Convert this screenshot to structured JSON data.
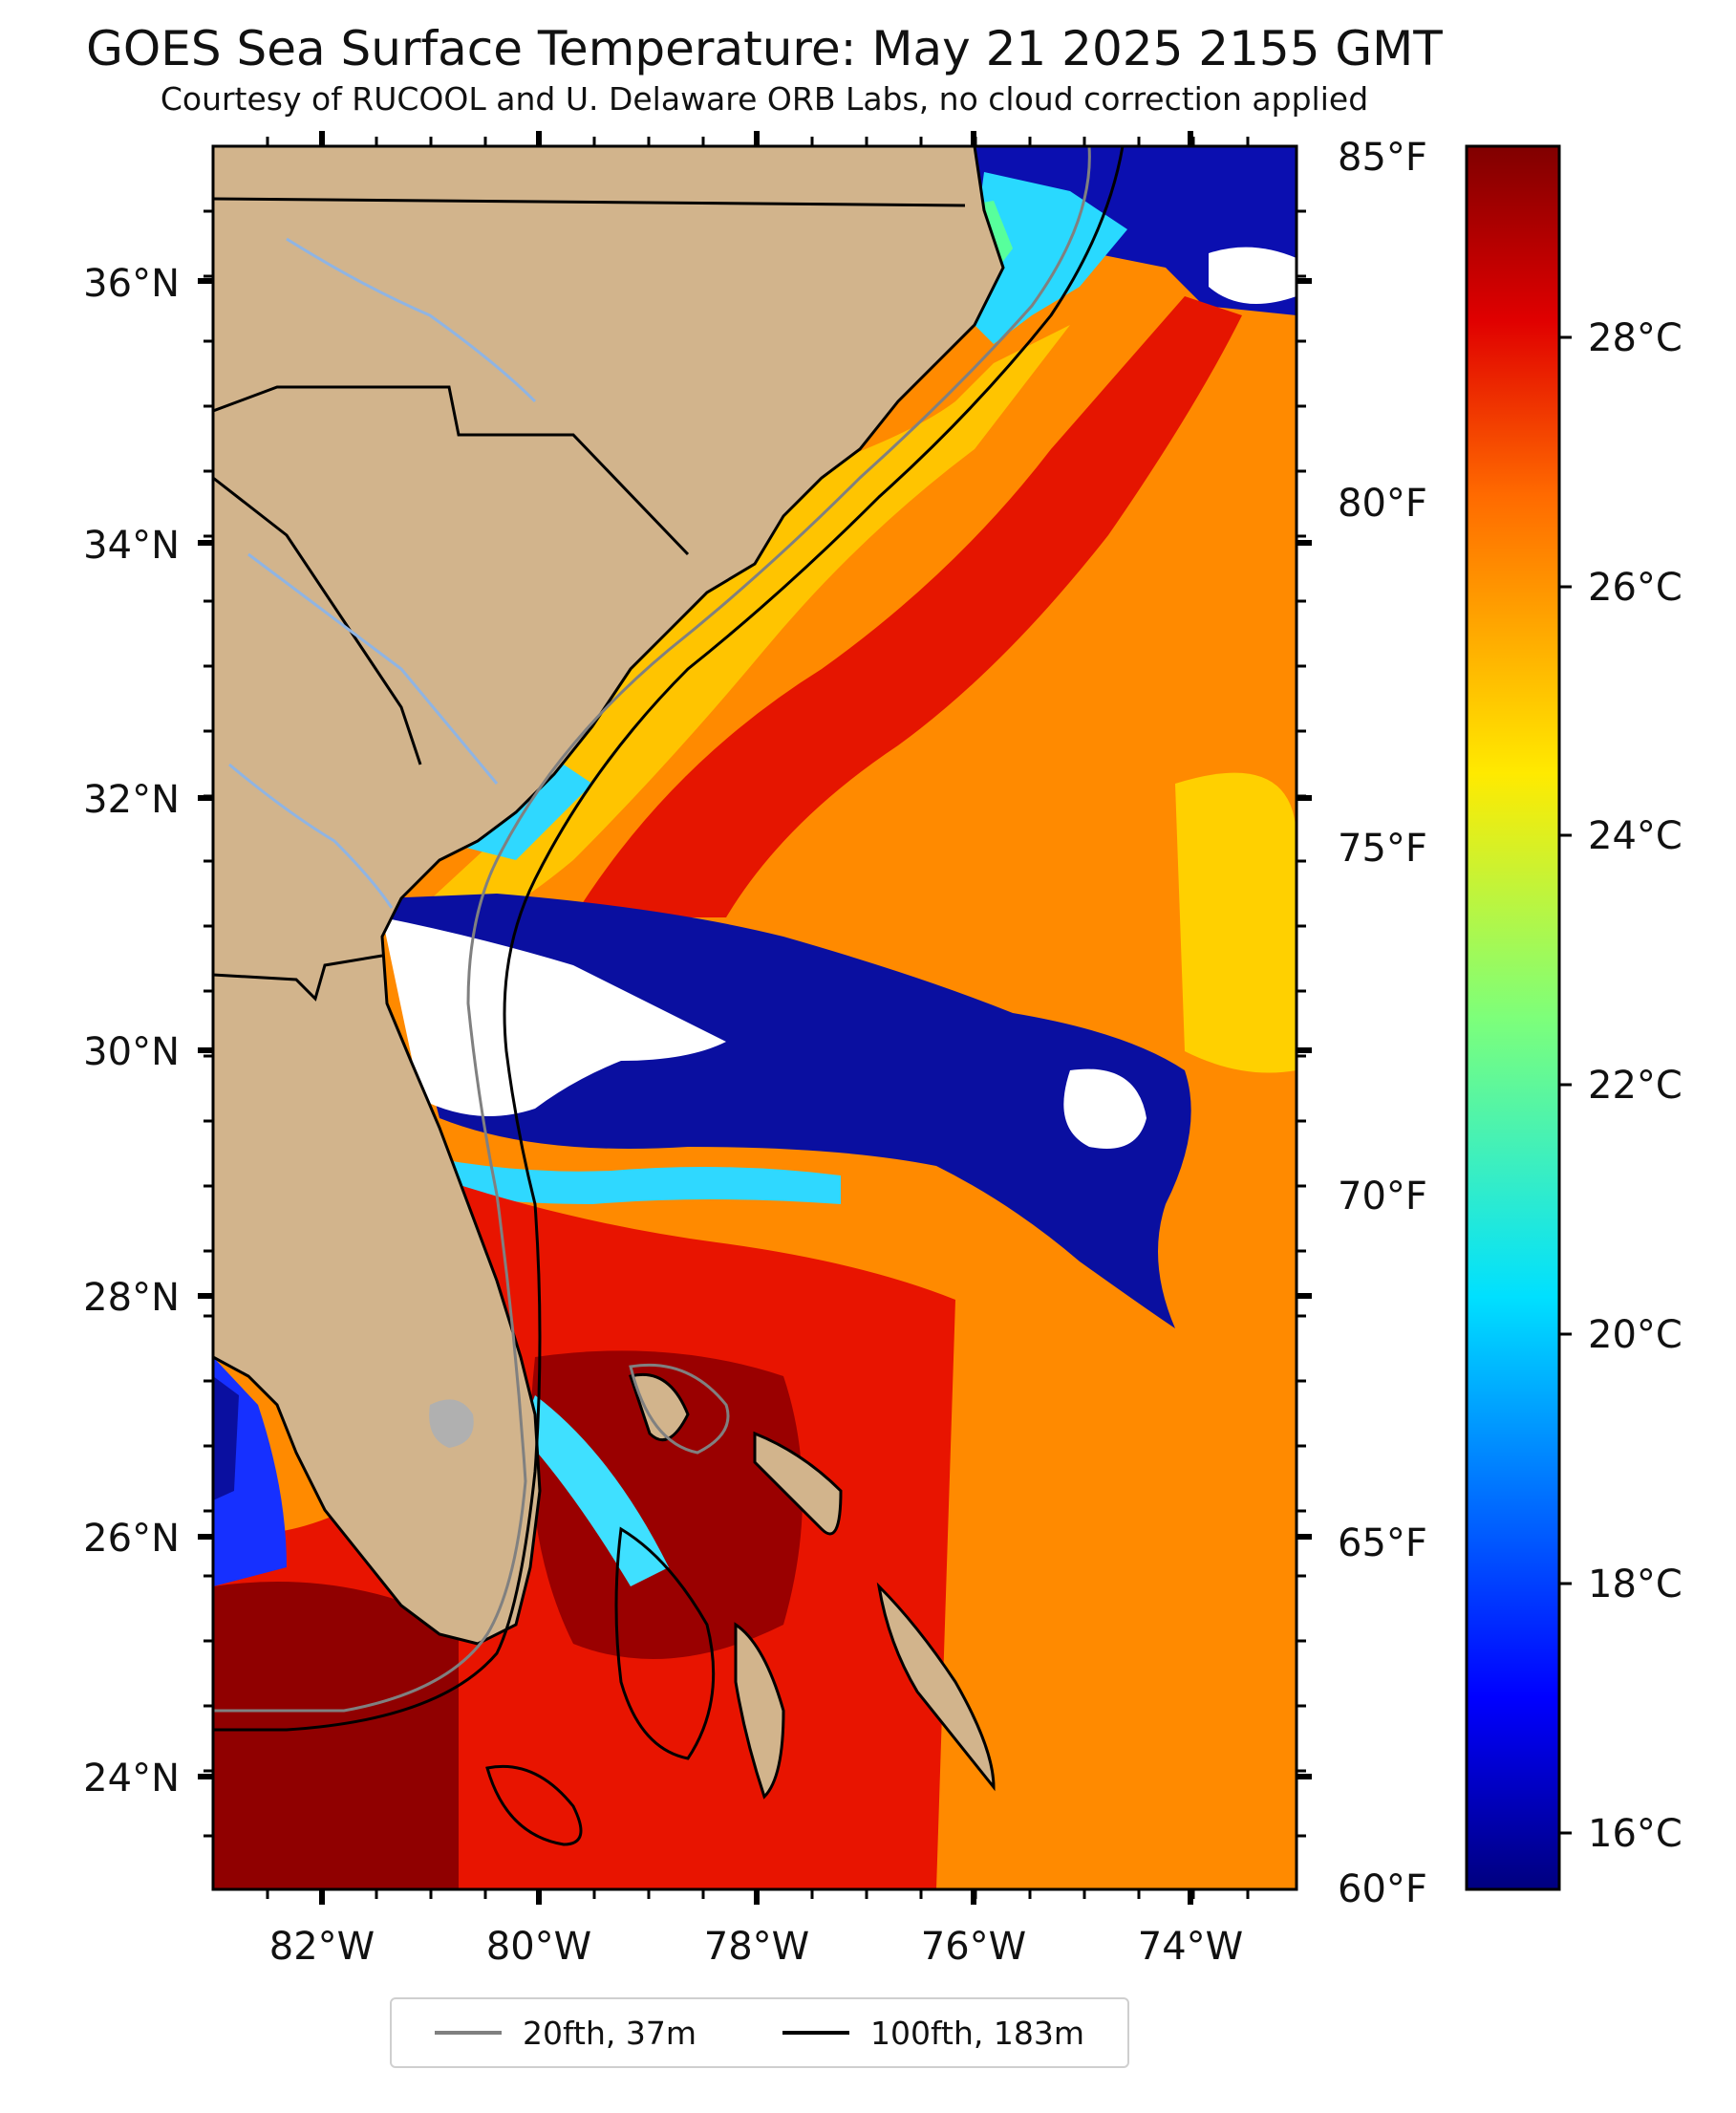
{
  "header": {
    "title": "GOES Sea Surface Temperature: May 21 2025 2155 GMT",
    "subtitle": "Courtesy of RUCOOL and U. Delaware ORB Labs, no cloud correction applied"
  },
  "map": {
    "lat_labels": [
      "36°N",
      "34°N",
      "32°N",
      "30°N",
      "28°N",
      "26°N",
      "24°N"
    ],
    "lon_labels": [
      "82°W",
      "80°W",
      "78°W",
      "76°W",
      "74°W"
    ],
    "extent": {
      "lon_min": -83.0,
      "lon_max": -73.0,
      "lat_min": 23.1,
      "lat_max": 37.0
    },
    "colors": {
      "land": "#d2b48c",
      "cloud": "#ffffff",
      "rivers": "#8fb4e3",
      "borders": "#000000"
    }
  },
  "colorbar": {
    "fahrenheit_labels": [
      "85°F",
      "80°F",
      "75°F",
      "70°F",
      "65°F",
      "60°F"
    ],
    "celsius_labels": [
      "28°C",
      "26°C",
      "24°C",
      "22°C",
      "20°C",
      "18°C",
      "16°C"
    ],
    "colormap": "jet",
    "range_f": [
      60,
      85
    ]
  },
  "legend": {
    "items": [
      {
        "label": "20fth, 37m",
        "color": "#808080"
      },
      {
        "label": "100fth, 183m",
        "color": "#000000"
      }
    ]
  }
}
